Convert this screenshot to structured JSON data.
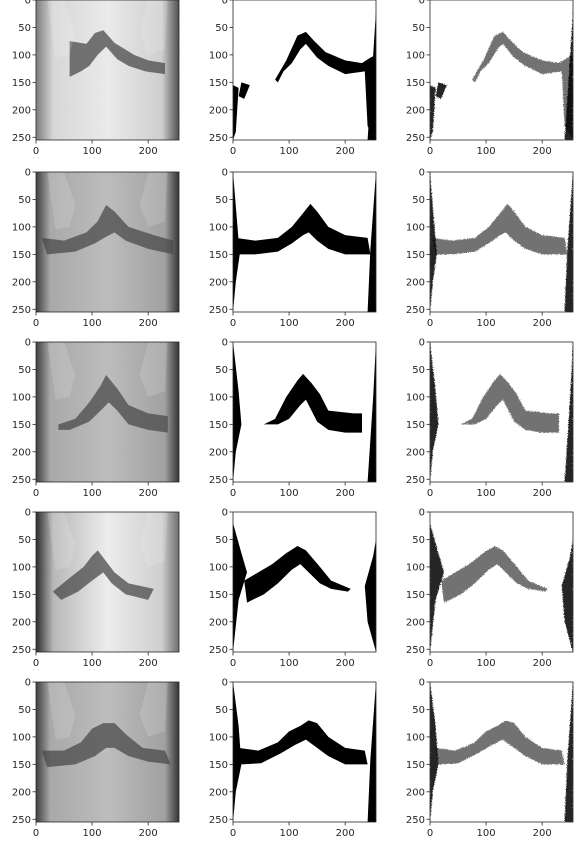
{
  "grid": {
    "rows": 5,
    "cols": 3,
    "x_ticks": [
      "0",
      "100",
      "200"
    ],
    "y_ticks": [
      "0",
      "50",
      "100",
      "150",
      "200",
      "250"
    ]
  },
  "colors": {
    "axis": "#262626",
    "mask": "#000000",
    "background": "#ffffff"
  },
  "panels": [
    {
      "row": 0,
      "col": 0,
      "kind": "xray",
      "brightness": "bright"
    },
    {
      "row": 0,
      "col": 1,
      "kind": "mask"
    },
    {
      "row": 0,
      "col": 2,
      "kind": "prediction"
    },
    {
      "row": 1,
      "col": 0,
      "kind": "xray",
      "brightness": "medium"
    },
    {
      "row": 1,
      "col": 1,
      "kind": "mask"
    },
    {
      "row": 1,
      "col": 2,
      "kind": "prediction"
    },
    {
      "row": 2,
      "col": 0,
      "kind": "xray",
      "brightness": "medium"
    },
    {
      "row": 2,
      "col": 1,
      "kind": "mask"
    },
    {
      "row": 2,
      "col": 2,
      "kind": "prediction"
    },
    {
      "row": 3,
      "col": 0,
      "kind": "xray",
      "brightness": "very-bright"
    },
    {
      "row": 3,
      "col": 1,
      "kind": "mask"
    },
    {
      "row": 3,
      "col": 2,
      "kind": "prediction"
    },
    {
      "row": 4,
      "col": 0,
      "kind": "xray",
      "brightness": "medium"
    },
    {
      "row": 4,
      "col": 1,
      "kind": "mask"
    },
    {
      "row": 4,
      "col": 2,
      "kind": "prediction"
    }
  ]
}
